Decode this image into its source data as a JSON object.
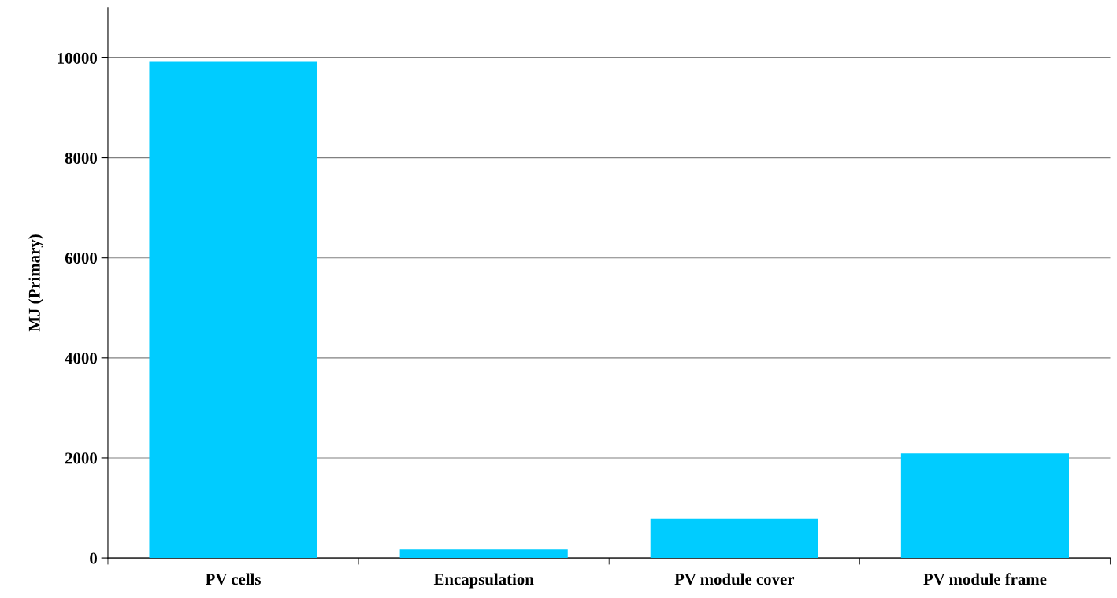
{
  "chart_data": {
    "type": "bar",
    "ylabel": "MJ (Primary)",
    "categories": [
      "PV cells",
      "Encapsulation",
      "PV module cover",
      "PV module frame"
    ],
    "values": [
      9920,
      170,
      790,
      2090
    ],
    "color": "#00ccff",
    "ylim": [
      0,
      11000
    ],
    "yticks": [
      0,
      2000,
      4000,
      6000,
      8000,
      10000
    ],
    "grid": "y"
  }
}
